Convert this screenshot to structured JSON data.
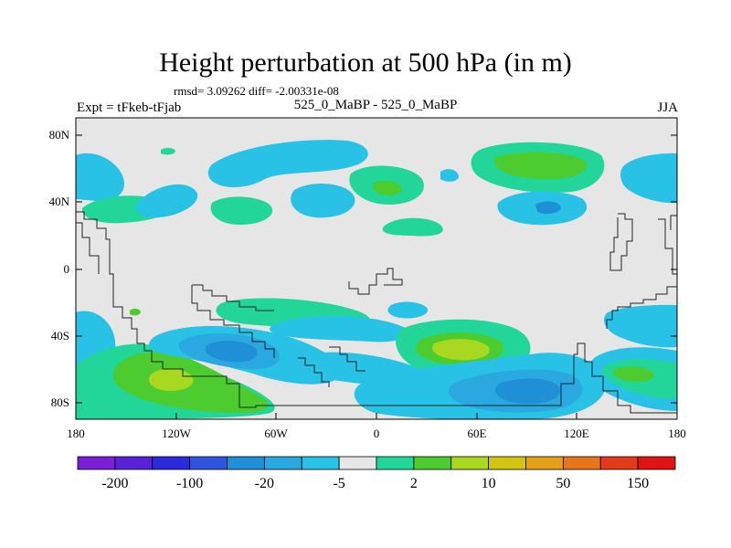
{
  "title": "Height perturbation at 500 hPa (in m)",
  "stats": "rmsd= 3.09262 diff= -2.00331e-08",
  "left_label": "Expt = tFkeb-tFjab",
  "center_label": "525_0_MaBP - 525_0_MaBP",
  "right_label": "JJA",
  "y_ticks": [
    "80N",
    "40N",
    "0",
    "40S",
    "80S"
  ],
  "x_ticks": [
    "180",
    "120W",
    "60W",
    "0",
    "60E",
    "120E",
    "180"
  ],
  "colorbar": {
    "colors": [
      "#7b1fd6",
      "#5a22d8",
      "#2a2adc",
      "#2f55e0",
      "#1f8fd8",
      "#2aa8e0",
      "#27c2e6",
      "#e6e6e6",
      "#22d69a",
      "#4ccc2e",
      "#a8d820",
      "#d4c412",
      "#e4a018",
      "#e8741a",
      "#e43a1c",
      "#e01414"
    ],
    "labels": [
      "-200",
      "-100",
      "-20",
      "-5",
      "2",
      "10",
      "50",
      "150"
    ]
  },
  "colors": {
    "background": "#e6e6e6",
    "light_blue": "#27c2e6",
    "mid_blue": "#2aa8e0",
    "blue": "#1f8fd8",
    "teal_green": "#22d69a",
    "green": "#4ccc2e",
    "yellow_green": "#a8d820"
  }
}
